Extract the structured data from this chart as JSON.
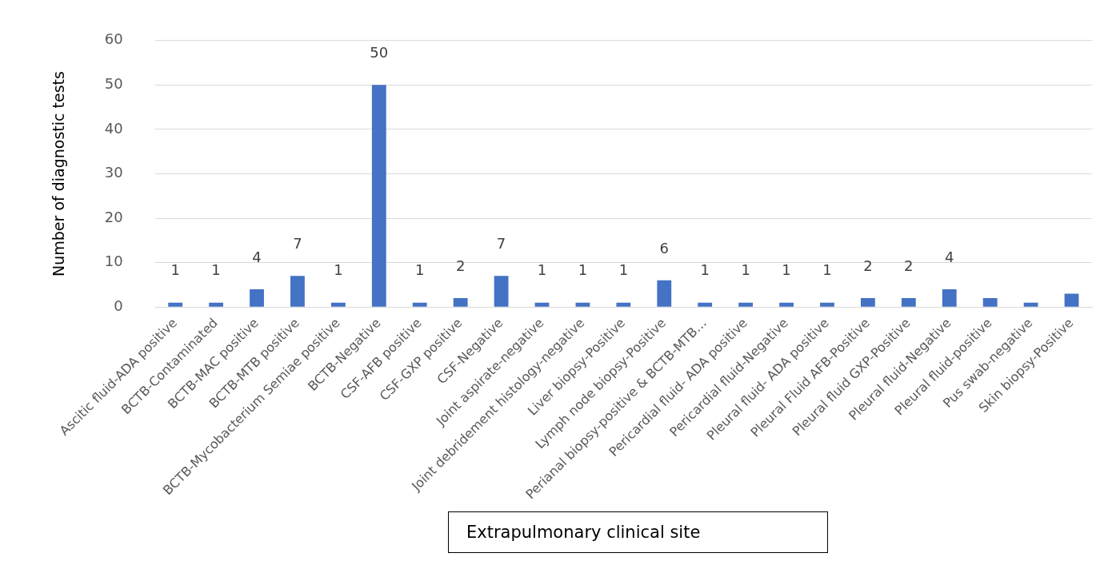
{
  "chart_data": {
    "type": "bar",
    "ylabel": "Number of diagnostic tests",
    "xlabel": "Extrapulmonary clinical site",
    "categories": [
      "Ascitic fluid-ADA positive",
      "BCTB-Contaminated",
      "BCTB-MAC positive",
      "BCTB-MTB positive",
      "BCTB-Mycobacterium Semiae positive",
      "BCTB-Negative",
      "CSF-AFB positive",
      "CSF-GXP positive",
      "CSF-Negative",
      "Joint aspirate-negative",
      "Joint debridement histology-negative",
      "Liver biopsy-Positive",
      "Lymph node biopsy-Positive",
      "Perianal biopsy-positive & BCTB-MTB…",
      "Pericardial fluid- ADA positive",
      "Pericardial fluid-Negative",
      "Pleural fluid- ADA positive",
      "Pleural Fluid AFB-Positive",
      "Pleural fluid GXP-Positive",
      "Pleural fluid-Negative",
      "Pleural fluid-positive",
      "Pus swab-negative",
      "Skin biopsy-Positive"
    ],
    "values": [
      1,
      1,
      4,
      7,
      1,
      50,
      1,
      2,
      7,
      1,
      1,
      1,
      6,
      1,
      1,
      1,
      1,
      2,
      2,
      4,
      2,
      1,
      3
    ],
    "value_labels": [
      "1",
      "1",
      "4",
      "7",
      "1",
      "50",
      "1",
      "2",
      "7",
      "1",
      "1",
      "1",
      "6",
      "1",
      "1",
      "1",
      "1",
      "2",
      "2",
      "4",
      null,
      null,
      null
    ],
    "color": "#4472c4",
    "ylim": [
      0,
      60
    ],
    "yticks": [
      0,
      10,
      20,
      30,
      40,
      50,
      60
    ],
    "grid": "y",
    "legend": false
  }
}
